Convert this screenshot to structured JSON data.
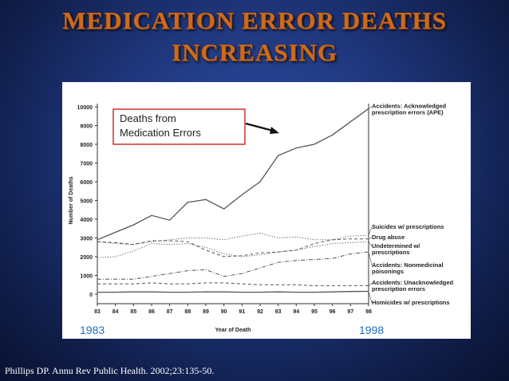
{
  "slide": {
    "title_line1": "MEDICATION ERROR DEATHS",
    "title_line2": "INCREASING",
    "citation": "Phillips DP. Annu Rev Public Health. 2002;23:135-50."
  },
  "annotations": {
    "callout": [
      "Deaths from",
      "Medication Errors"
    ],
    "year_start": "1983",
    "year_end": "1998"
  },
  "colors": {
    "title": "#cf6a1a",
    "callout_border": "#c8322a",
    "annotation_text": "#1e6fc0",
    "line": "#555555"
  },
  "chart_data": {
    "type": "line",
    "xlabel": "Year of Death",
    "ylabel": "Number of Deaths",
    "x": [
      "83",
      "84",
      "85",
      "86",
      "87",
      "88",
      "89",
      "90",
      "91",
      "92",
      "93",
      "94",
      "95",
      "96",
      "97",
      "98"
    ],
    "ylim": [
      0,
      10000
    ],
    "yticks": [
      0,
      1000,
      2000,
      3000,
      4000,
      5000,
      6000,
      7000,
      8000,
      9000,
      10000
    ],
    "grid": false,
    "series": [
      {
        "name": "Accidents: Acknowledged prescription errors (APE)",
        "label_lines": [
          "Accidents: Acknowledged",
          "prescription errors (APE)"
        ],
        "style": "solid",
        "values": [
          2900,
          3300,
          3700,
          4200,
          3950,
          4900,
          5050,
          4550,
          5300,
          6000,
          7400,
          7800,
          8000,
          8500,
          9200,
          9900
        ]
      },
      {
        "name": "Suicides w/ prescriptions",
        "label_lines": [
          "Suicides w/ prescriptions"
        ],
        "style": "dotted",
        "values": [
          2800,
          2700,
          2650,
          2800,
          2900,
          3000,
          3000,
          2900,
          3100,
          3250,
          3000,
          3050,
          2900,
          2900,
          3100,
          3150
        ]
      },
      {
        "name": "Drug abuse",
        "label_lines": [
          "Drug abuse"
        ],
        "style": "dashed",
        "values": [
          2800,
          2750,
          2650,
          2850,
          2850,
          2800,
          2350,
          2000,
          2050,
          2200,
          2250,
          2350,
          2700,
          2900,
          2950,
          2950
        ]
      },
      {
        "name": "Undetermined w/ prescriptions",
        "label_lines": [
          "Undetermined w/",
          "prescriptions"
        ],
        "style": "dotted",
        "values": [
          1950,
          2000,
          2300,
          2700,
          2650,
          2700,
          2500,
          2150,
          2000,
          2100,
          2250,
          2350,
          2550,
          2700,
          2750,
          2800
        ]
      },
      {
        "name": "Accidents: Nonmedicinal poisonings",
        "label_lines": [
          "Accidents: Nonmedicinal",
          "poisonings"
        ],
        "style": "dashdot",
        "values": [
          800,
          800,
          800,
          950,
          1100,
          1250,
          1300,
          950,
          1100,
          1400,
          1700,
          1800,
          1850,
          1900,
          2150,
          2250
        ]
      },
      {
        "name": "Accidents: Unacknowledged prescription errors",
        "label_lines": [
          "Accidents: Unacknowledged",
          "prescription errors"
        ],
        "style": "dashed",
        "values": [
          550,
          550,
          550,
          600,
          550,
          550,
          600,
          600,
          550,
          500,
          500,
          500,
          450,
          450,
          450,
          450
        ]
      },
      {
        "name": "Homicides w/ prescriptions",
        "label_lines": [
          "Homicides w/ prescriptions"
        ],
        "style": "solid",
        "values": [
          100,
          100,
          120,
          120,
          100,
          100,
          120,
          120,
          100,
          100,
          120,
          100,
          100,
          120,
          140,
          150
        ]
      }
    ]
  }
}
